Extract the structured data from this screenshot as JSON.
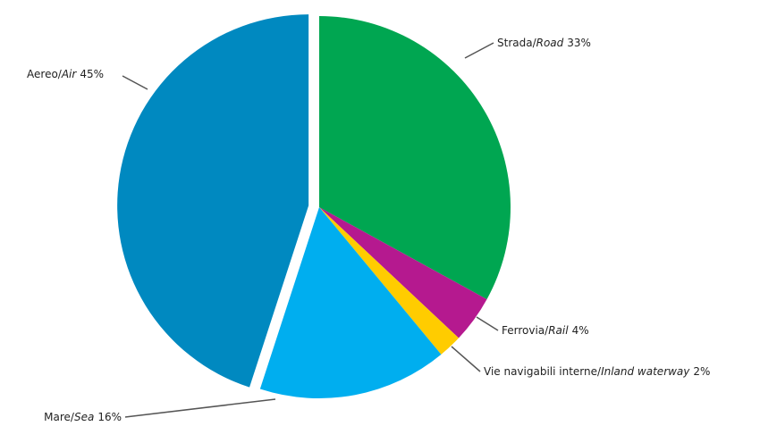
{
  "chart_data": {
    "type": "pie",
    "categories": [
      {
        "it": "Strada/",
        "en": "Road"
      },
      {
        "it": "Ferrovia/",
        "en": "Rail"
      },
      {
        "it": "Vie navigabili interne/",
        "en": "Inland waterway"
      },
      {
        "it": "Mare/",
        "en": "Sea"
      },
      {
        "it": "Aereo/",
        "en": "Air"
      }
    ],
    "values": [
      33,
      4,
      2,
      16,
      45
    ],
    "value_labels": [
      "33%",
      "4%",
      "2%",
      "16%",
      "45%"
    ],
    "colors": [
      "#00a651",
      "#b5198f",
      "#ffcc00",
      "#00aeef",
      "#0089c0"
    ],
    "exploded": [
      4
    ]
  }
}
